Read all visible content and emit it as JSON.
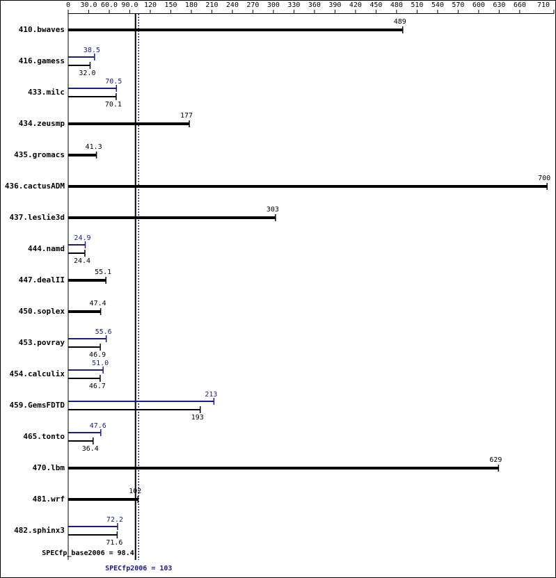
{
  "chart_data": {
    "type": "bar",
    "categories": [
      "410.bwaves",
      "416.gamess",
      "433.milc",
      "434.zeusmp",
      "435.gromacs",
      "436.cactusADM",
      "437.leslie3d",
      "444.namd",
      "447.dealII",
      "450.soplex",
      "453.povray",
      "454.calculix",
      "459.GemsFDTD",
      "465.tonto",
      "470.lbm",
      "481.wrf",
      "482.sphinx3"
    ],
    "base": {
      "color": "#000000",
      "values": [
        489,
        32.0,
        70.1,
        177,
        41.3,
        700,
        303,
        24.4,
        55.1,
        47.4,
        46.9,
        46.7,
        193,
        36.4,
        629,
        102,
        71.6
      ],
      "value_labels": [
        "489",
        "32.0",
        "70.1",
        "177",
        "41.3",
        "700",
        "303",
        "24.4",
        "55.1",
        "47.4",
        "46.9",
        "46.7",
        "193",
        "36.4",
        "629",
        "102",
        "71.6"
      ]
    },
    "peak": {
      "color": "#1a1a8c",
      "values": [
        null,
        38.5,
        70.5,
        null,
        null,
        null,
        null,
        24.9,
        null,
        null,
        55.6,
        51.0,
        213,
        47.6,
        null,
        null,
        72.2
      ],
      "value_labels": [
        null,
        "38.5",
        "70.5",
        null,
        null,
        null,
        null,
        "24.9",
        null,
        null,
        "55.6",
        "51.0",
        "213",
        "47.6",
        null,
        null,
        "72.2"
      ]
    },
    "xlim": [
      0,
      710
    ],
    "xticks": [
      0,
      {
        "value": 30,
        "label": "30.0"
      },
      {
        "value": 60,
        "label": "60.0"
      },
      {
        "value": 90,
        "label": "90.0"
      },
      120,
      150,
      180,
      210,
      240,
      270,
      300,
      330,
      360,
      390,
      420,
      450,
      480,
      510,
      540,
      570,
      600,
      630,
      660,
      710
    ],
    "reference_lines": [
      {
        "label": "SPECfp_base2006 = 98.4",
        "value": 98.4,
        "color": "#000000",
        "style": "solid"
      },
      {
        "label": "SPECfp2006 = 103",
        "value": 103,
        "color": "#1a1a8c",
        "style": "dotted"
      }
    ]
  }
}
